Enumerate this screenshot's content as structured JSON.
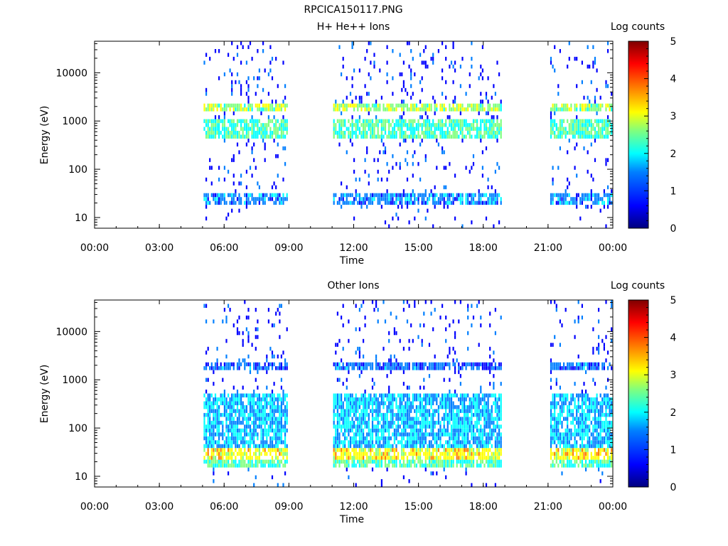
{
  "page_title": "RPCICA150117.PNG",
  "colors": {
    "colormap": [
      "#00007f",
      "#0000ff",
      "#007fff",
      "#00ffff",
      "#7fff7f",
      "#ffff00",
      "#ff7f00",
      "#ff0000",
      "#7f0000"
    ],
    "axis": "#000000",
    "background": "#ffffff"
  },
  "chart_data": [
    {
      "type": "heatmap",
      "title": "H+ He++ Ions",
      "xlabel": "Time",
      "ylabel": "Energy (eV)",
      "x_ticks": [
        "00:00",
        "03:00",
        "06:00",
        "09:00",
        "12:00",
        "15:00",
        "18:00",
        "21:00",
        "00:00"
      ],
      "x_range_hours": [
        0,
        24
      ],
      "y_scale": "log",
      "y_ticks": [
        10,
        100,
        1000,
        10000
      ],
      "y_tick_labels": [
        "10",
        "100",
        "1000",
        "10000"
      ],
      "y_range": [
        6,
        45000
      ],
      "colorbar_label": "Log counts",
      "colorbar_ticks": [
        "0",
        "1",
        "2",
        "3",
        "4",
        "5"
      ],
      "colorbar_range": [
        0,
        5
      ],
      "data_intervals_hours": [
        [
          5.05,
          8.95
        ],
        [
          11.05,
          18.8
        ],
        [
          21.1,
          23.95
        ]
      ],
      "bands": [
        {
          "energy": [
            1500,
            2400
          ],
          "level": 2.6
        },
        {
          "energy": [
            400,
            1100
          ],
          "level": 2.2
        },
        {
          "energy": [
            20,
            35
          ],
          "level": 1.3
        }
      ]
    },
    {
      "type": "heatmap",
      "title": "Other Ions",
      "xlabel": "Time",
      "ylabel": "Energy (eV)",
      "x_ticks": [
        "00:00",
        "03:00",
        "06:00",
        "09:00",
        "12:00",
        "15:00",
        "18:00",
        "21:00",
        "00:00"
      ],
      "x_range_hours": [
        0,
        24
      ],
      "y_scale": "log",
      "y_ticks": [
        10,
        100,
        1000,
        10000
      ],
      "y_tick_labels": [
        "10",
        "100",
        "1000",
        "10000"
      ],
      "y_range": [
        6,
        45000
      ],
      "colorbar_label": "Log counts",
      "colorbar_ticks": [
        "0",
        "1",
        "2",
        "3",
        "4",
        "5"
      ],
      "colorbar_range": [
        0,
        5
      ],
      "data_intervals_hours": [
        [
          5.05,
          8.95
        ],
        [
          11.05,
          18.8
        ],
        [
          21.1,
          23.95
        ]
      ],
      "bands": [
        {
          "energy": [
            24,
            40
          ],
          "level": 3.1
        },
        {
          "energy": [
            16,
            24
          ],
          "level": 2.2
        },
        {
          "energy": [
            40,
            500
          ],
          "level": 1.6
        },
        {
          "energy": [
            1500,
            2400
          ],
          "level": 1.1
        }
      ]
    }
  ]
}
